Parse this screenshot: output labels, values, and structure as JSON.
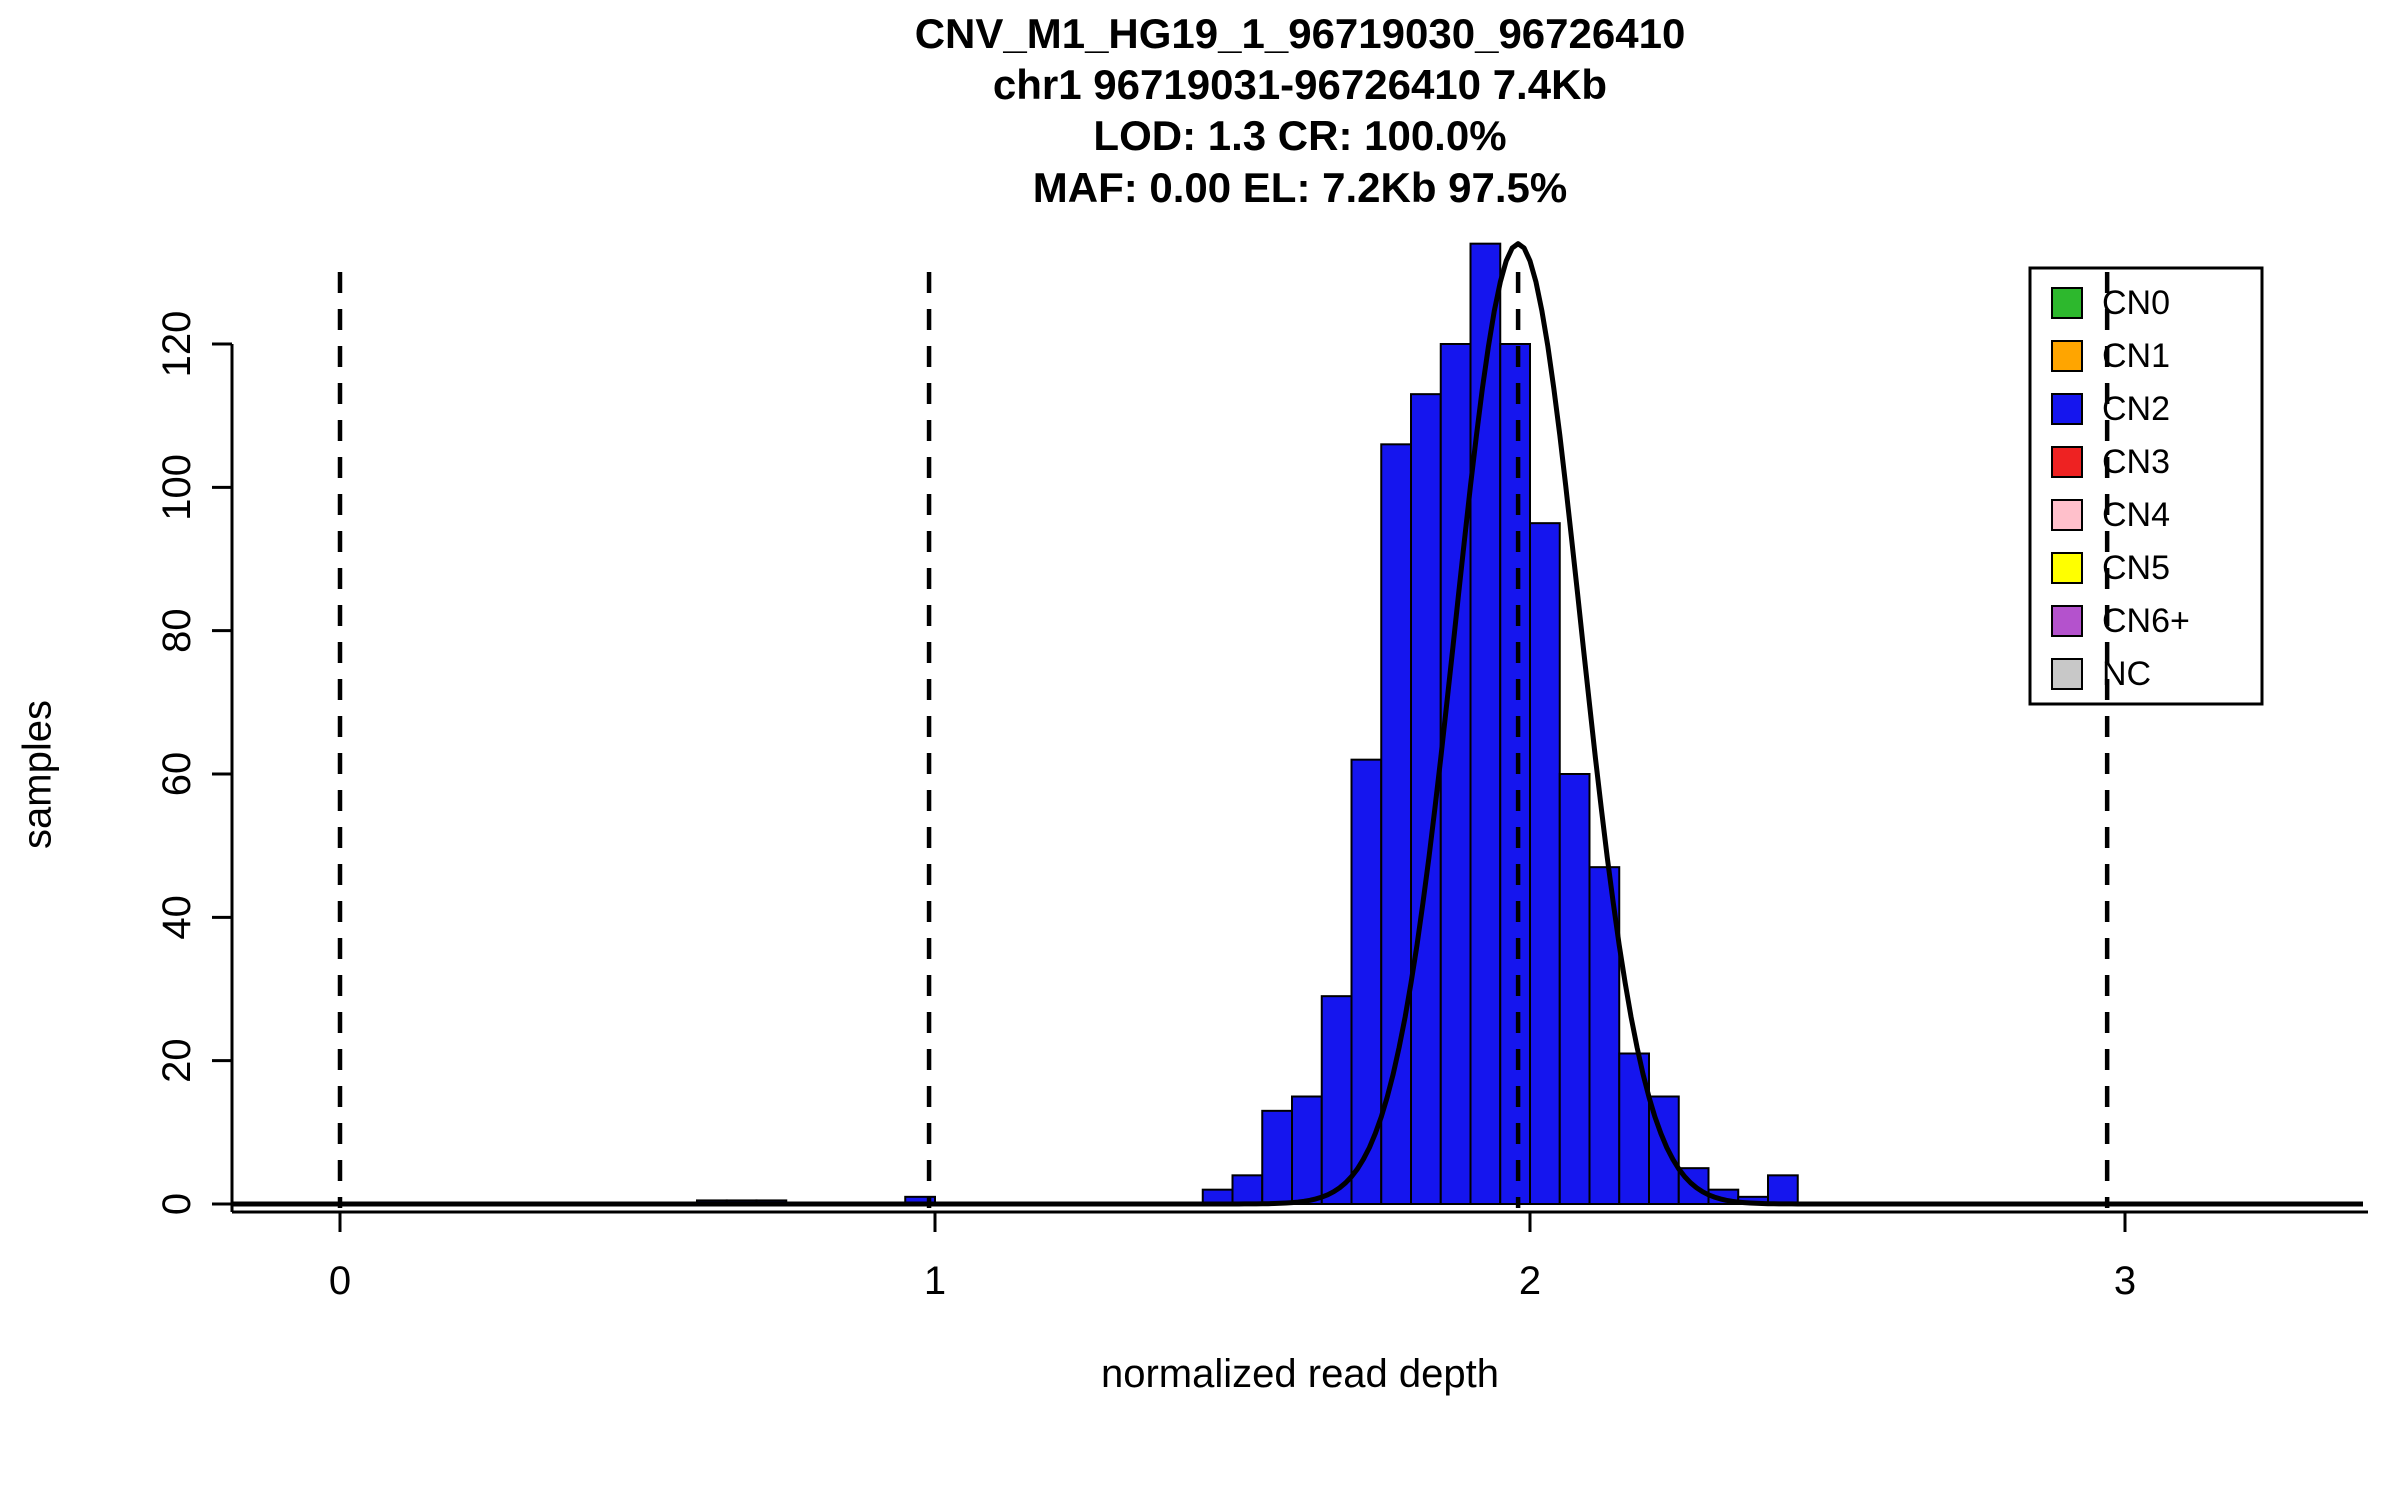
{
  "title": {
    "line1": "CNV_M1_HG19_1_96719030_96726410",
    "line2": "chr1 96719031-96726410 7.4Kb",
    "line3": "LOD: 1.3 CR: 100.0%",
    "line4": "MAF: 0.00 EL: 7.2Kb 97.5%"
  },
  "axes": {
    "x_label": "normalized read depth",
    "y_label": "samples",
    "x_ticks": [
      0,
      1,
      2,
      3
    ],
    "y_ticks": [
      0,
      20,
      40,
      60,
      80,
      100,
      120
    ]
  },
  "legend": {
    "items": [
      {
        "label": "CN0",
        "color": "#2DB82D"
      },
      {
        "label": "CN1",
        "color": "#FFA500"
      },
      {
        "label": "CN2",
        "color": "#1515EE"
      },
      {
        "label": "CN3",
        "color": "#EE2222"
      },
      {
        "label": "CN4",
        "color": "#FFC0CB"
      },
      {
        "label": "CN5",
        "color": "#FFFF00"
      },
      {
        "label": "CN6+",
        "color": "#B452CD"
      },
      {
        "label": "NC",
        "color": "#C8C8C8"
      }
    ]
  },
  "chart_data": {
    "type": "bar",
    "subtype": "histogram-with-gaussian-fit",
    "title": "CNV_M1_HG19_1_96719030_96726410 | chr1 96719031-96726410 7.4Kb | LOD: 1.3 CR: 100.0% | MAF: 0.00 EL: 7.2Kb 97.5%",
    "xlabel": "normalized read depth",
    "ylabel": "samples",
    "xlim": [
      -0.18,
      3.4
    ],
    "ylim": [
      0,
      130
    ],
    "grid": false,
    "legend_position": "top-right",
    "bin_width": 0.05,
    "bar_color": "#1515EE",
    "bar_border_color": "#000000",
    "bins": [
      {
        "x": 1.45,
        "count": 2
      },
      {
        "x": 1.5,
        "count": 4
      },
      {
        "x": 1.55,
        "count": 13
      },
      {
        "x": 1.6,
        "count": 15
      },
      {
        "x": 1.65,
        "count": 29
      },
      {
        "x": 1.7,
        "count": 62
      },
      {
        "x": 1.75,
        "count": 106
      },
      {
        "x": 1.8,
        "count": 113
      },
      {
        "x": 1.85,
        "count": 120
      },
      {
        "x": 1.9,
        "count": 134
      },
      {
        "x": 1.95,
        "count": 120
      },
      {
        "x": 2.0,
        "count": 95
      },
      {
        "x": 2.05,
        "count": 60
      },
      {
        "x": 2.1,
        "count": 47
      },
      {
        "x": 2.15,
        "count": 21
      },
      {
        "x": 2.2,
        "count": 15
      },
      {
        "x": 2.25,
        "count": 5
      },
      {
        "x": 2.3,
        "count": 2
      },
      {
        "x": 2.35,
        "count": 1
      },
      {
        "x": 2.4,
        "count": 4
      }
    ],
    "trace_bins": [
      {
        "x": 0.6,
        "count": 0.5
      },
      {
        "x": 0.65,
        "count": 0.5
      },
      {
        "x": 0.7,
        "count": 0.5
      },
      {
        "x": 0.95,
        "count": 1
      }
    ],
    "fit_curve": {
      "type": "gaussian",
      "mean": 1.98,
      "sd": 0.105,
      "peak": 134,
      "color": "#000000"
    },
    "dashed_lines_x": [
      0.0,
      0.99,
      1.98,
      2.97
    ],
    "dashed_line_color": "#000000"
  }
}
